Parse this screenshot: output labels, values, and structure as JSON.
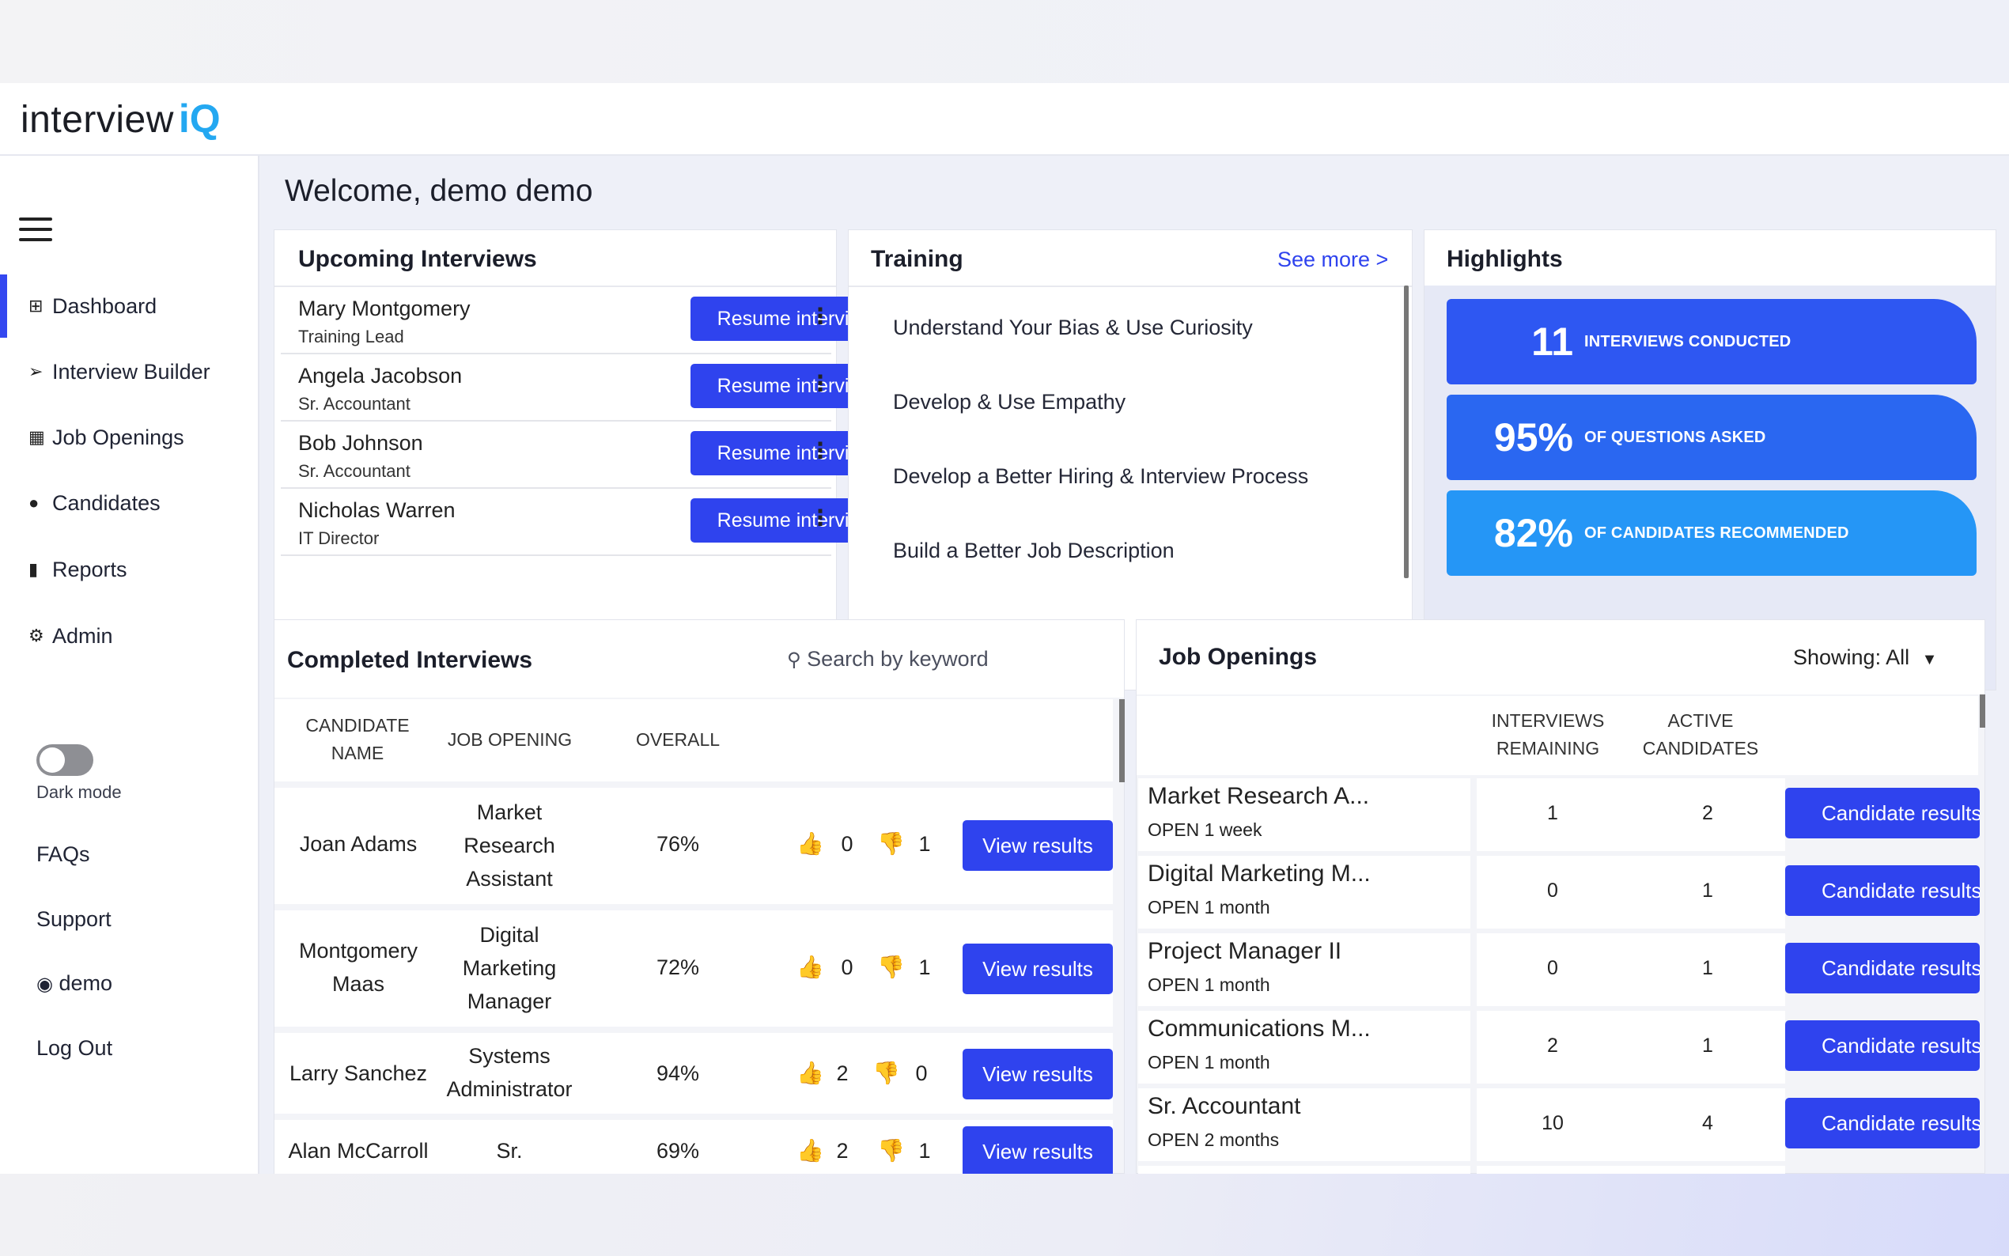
{
  "app": {
    "logo_text": "interview",
    "logo_accent": "iQ"
  },
  "sidebar": {
    "items": [
      {
        "label": "Dashboard",
        "icon": "grid-icon"
      },
      {
        "label": "Interview Builder",
        "icon": "compass-icon"
      },
      {
        "label": "Job Openings",
        "icon": "book-icon"
      },
      {
        "label": "Candidates",
        "icon": "people-icon"
      },
      {
        "label": "Reports",
        "icon": "bar-chart-icon"
      },
      {
        "label": "Admin",
        "icon": "user-gear-icon"
      }
    ],
    "dark_mode_label": "Dark mode",
    "dark_mode_on": false,
    "links": [
      "FAQs",
      "Support",
      "demo",
      "Log Out"
    ]
  },
  "welcome": "Welcome, demo demo",
  "upcoming": {
    "title": "Upcoming Interviews",
    "button_label": "Resume interview",
    "rows": [
      {
        "name": "Mary Montgomery",
        "role": "Training Lead"
      },
      {
        "name": "Angela Jacobson",
        "role": "Sr. Accountant"
      },
      {
        "name": "Bob Johnson",
        "role": "Sr. Accountant"
      },
      {
        "name": "Nicholas Warren",
        "role": "IT Director"
      }
    ]
  },
  "training": {
    "title": "Training",
    "see_more": "See more >",
    "items": [
      "Understand Your Bias & Use Curiosity",
      "Develop & Use Empathy",
      "Develop a Better Hiring & Interview Process",
      "Build a Better Job Description"
    ]
  },
  "highlights": {
    "title": "Highlights",
    "items": [
      {
        "value": "11",
        "label": "INTERVIEWS CONDUCTED",
        "color": "#2e57f2"
      },
      {
        "value": "95%",
        "label": "OF QUESTIONS ASKED",
        "color": "#2a67f1"
      },
      {
        "value": "82%",
        "label": "OF CANDIDATES RECOMMENDED",
        "color": "#2596f6"
      }
    ]
  },
  "completed": {
    "title": "Completed Interviews",
    "search_placeholder": "Search by keyword",
    "headers": {
      "name": "CANDIDATE NAME",
      "job": "JOB OPENING",
      "overall": "OVERALL"
    },
    "button_label": "View results",
    "rows": [
      {
        "name": "Joan Adams",
        "job": "Market Research Assistant",
        "overall": "76%",
        "up": "0",
        "down": "1"
      },
      {
        "name": "Montgomery Maas",
        "job": "Digital Marketing Manager",
        "overall": "72%",
        "up": "0",
        "down": "1"
      },
      {
        "name": "Larry Sanchez",
        "job": "Systems Administrator",
        "overall": "94%",
        "up": "2",
        "down": "0"
      },
      {
        "name": "Alan McCarroll",
        "job": "Sr. Accountant",
        "overall": "69%",
        "up": "2",
        "down": "1"
      }
    ]
  },
  "jobs": {
    "title": "Job Openings",
    "showing": "Showing: All",
    "headers": {
      "remaining": "INTERVIEWS REMAINING",
      "active": "ACTIVE CANDIDATES"
    },
    "button_label": "Candidate results",
    "rows": [
      {
        "title": "Market Research A...",
        "status": "OPEN 1 week",
        "remaining": "1",
        "active": "2"
      },
      {
        "title": "Digital Marketing M...",
        "status": "OPEN 1 month",
        "remaining": "0",
        "active": "1"
      },
      {
        "title": "Project Manager II",
        "status": "OPEN 1 month",
        "remaining": "0",
        "active": "1"
      },
      {
        "title": "Communications M...",
        "status": "OPEN 1 month",
        "remaining": "2",
        "active": "1"
      },
      {
        "title": "Sr. Accountant",
        "status": "OPEN 2 months",
        "remaining": "10",
        "active": "4"
      }
    ]
  }
}
